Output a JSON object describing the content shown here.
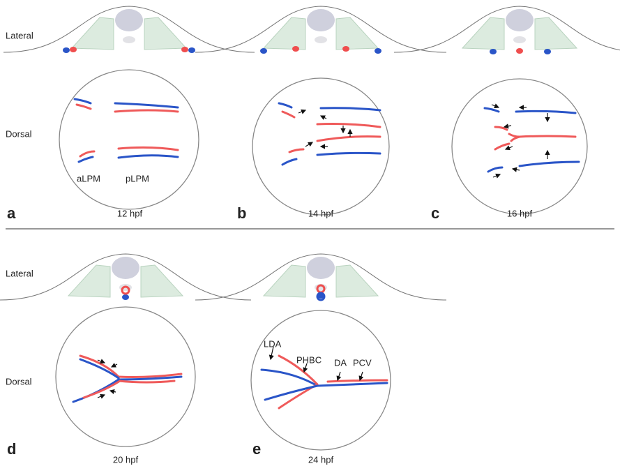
{
  "rows": [
    {
      "lateral_label": "Lateral",
      "dorsal_label": "Dorsal",
      "panels": [
        {
          "letter": "a",
          "time": "12 hpf",
          "annotations": [
            "aLPM",
            "pLPM"
          ]
        },
        {
          "letter": "b",
          "time": "14 hpf"
        },
        {
          "letter": "c",
          "time": "16 hpf"
        }
      ]
    },
    {
      "lateral_label": "Lateral",
      "dorsal_label": "Dorsal",
      "panels": [
        {
          "letter": "d",
          "time": "20 hpf"
        },
        {
          "letter": "e",
          "time": "24 hpf",
          "annotations": [
            "LDA",
            "PHBC",
            "DA",
            "PCV"
          ]
        }
      ]
    }
  ]
}
